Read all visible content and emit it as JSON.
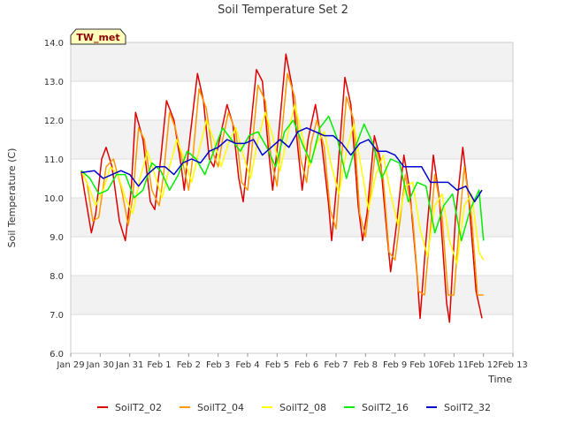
{
  "chart_data": {
    "type": "line",
    "title": "Soil Temperature Set 2",
    "xlabel": "Time",
    "ylabel": "Soil Temperature (C)",
    "badge": "TW_met",
    "ylim": [
      6.0,
      14.0
    ],
    "yticks": [
      "6.0",
      "7.0",
      "8.0",
      "9.0",
      "10.0",
      "11.0",
      "12.0",
      "13.0",
      "14.0"
    ],
    "xlim": [
      0,
      15
    ],
    "xticks": [
      "Jan 29",
      "Jan 30",
      "Jan 31",
      "Feb 1",
      "Feb 2",
      "Feb 3",
      "Feb 4",
      "Feb 5",
      "Feb 6",
      "Feb 7",
      "Feb 8",
      "Feb 9",
      "Feb 10",
      "Feb 11",
      "Feb 12",
      "Feb 13"
    ],
    "grid": true,
    "legend_position": "bottom",
    "series": [
      {
        "name": "SoilT2_02",
        "color": "#dd0000",
        "x": [
          0.35,
          0.5,
          0.7,
          0.85,
          1.05,
          1.2,
          1.4,
          1.65,
          1.85,
          2.05,
          2.2,
          2.45,
          2.7,
          2.85,
          3.05,
          3.25,
          3.5,
          3.75,
          3.85,
          4.05,
          4.3,
          4.5,
          4.7,
          4.85,
          5.05,
          5.3,
          5.5,
          5.7,
          5.85,
          6.05,
          6.3,
          6.5,
          6.7,
          6.85,
          7.05,
          7.3,
          7.5,
          7.7,
          7.85,
          8.05,
          8.3,
          8.5,
          8.75,
          8.85,
          9.05,
          9.3,
          9.5,
          9.75,
          9.9,
          10.05,
          10.3,
          10.5,
          10.75,
          10.85,
          11.05,
          11.3,
          11.5,
          11.75,
          11.85,
          12.05,
          12.3,
          12.5,
          12.75,
          12.85,
          13.05,
          13.3,
          13.5,
          13.75,
          13.95
        ],
        "y": [
          10.7,
          10.0,
          9.1,
          9.6,
          11.0,
          11.3,
          10.8,
          9.4,
          8.9,
          10.2,
          12.2,
          11.5,
          9.9,
          9.7,
          11.0,
          12.5,
          12.0,
          10.8,
          10.2,
          11.6,
          13.2,
          12.5,
          11.0,
          10.8,
          11.5,
          12.4,
          11.9,
          10.5,
          9.9,
          11.4,
          13.3,
          13.0,
          11.3,
          10.2,
          11.6,
          13.7,
          12.9,
          11.3,
          10.2,
          11.5,
          12.4,
          11.5,
          9.8,
          8.9,
          10.6,
          13.1,
          12.4,
          9.8,
          8.9,
          9.6,
          11.6,
          11.0,
          8.9,
          8.1,
          9.3,
          11.1,
          10.2,
          8.0,
          6.9,
          8.9,
          11.1,
          10.0,
          7.3,
          6.8,
          9.5,
          11.3,
          10.0,
          7.6,
          6.9
        ]
      },
      {
        "name": "SoilT2_04",
        "color": "#ff9900",
        "x": [
          0.35,
          0.55,
          0.75,
          0.95,
          1.2,
          1.45,
          1.7,
          1.95,
          2.1,
          2.3,
          2.5,
          2.75,
          3.0,
          3.15,
          3.35,
          3.55,
          3.8,
          4.0,
          4.15,
          4.35,
          4.6,
          4.8,
          5.0,
          5.15,
          5.35,
          5.6,
          5.8,
          6.0,
          6.15,
          6.35,
          6.6,
          6.8,
          7.0,
          7.15,
          7.35,
          7.6,
          7.8,
          8.0,
          8.15,
          8.35,
          8.6,
          8.8,
          9.0,
          9.15,
          9.35,
          9.6,
          9.8,
          10.0,
          10.15,
          10.35,
          10.6,
          10.8,
          11.0,
          11.2,
          11.35,
          11.6,
          11.8,
          12.0,
          12.2,
          12.35,
          12.6,
          12.8,
          13.0,
          13.2,
          13.35,
          13.6,
          13.8,
          14.0
        ],
        "y": [
          10.7,
          10.4,
          9.4,
          9.5,
          10.8,
          11.0,
          10.3,
          9.3,
          10.0,
          11.8,
          11.5,
          10.2,
          9.8,
          10.6,
          12.2,
          11.8,
          10.9,
          10.2,
          11.1,
          12.8,
          12.3,
          11.2,
          10.8,
          11.5,
          12.2,
          11.7,
          10.4,
          10.2,
          11.3,
          12.9,
          12.5,
          11.0,
          10.3,
          11.6,
          13.2,
          12.6,
          11.0,
          10.4,
          11.4,
          12.0,
          11.3,
          9.7,
          9.2,
          10.7,
          12.6,
          12.0,
          9.6,
          9.0,
          10.0,
          11.3,
          10.5,
          8.6,
          8.4,
          9.6,
          10.6,
          9.5,
          7.6,
          7.5,
          9.2,
          10.6,
          9.5,
          7.5,
          7.5,
          9.5,
          10.8,
          9.5,
          7.5,
          7.5
        ]
      },
      {
        "name": "SoilT2_08",
        "color": "#ffff00",
        "x": [
          0.35,
          0.6,
          0.85,
          1.1,
          1.35,
          1.6,
          1.85,
          2.1,
          2.35,
          2.6,
          2.85,
          3.1,
          3.35,
          3.6,
          3.85,
          4.1,
          4.35,
          4.6,
          4.85,
          5.1,
          5.35,
          5.6,
          5.85,
          6.1,
          6.35,
          6.6,
          6.85,
          7.1,
          7.35,
          7.6,
          7.85,
          8.1,
          8.35,
          8.6,
          8.85,
          9.1,
          9.35,
          9.6,
          9.85,
          10.1,
          10.35,
          10.6,
          10.85,
          11.1,
          11.35,
          11.6,
          11.85,
          12.1,
          12.35,
          12.6,
          12.85,
          13.1,
          13.35,
          13.6,
          13.85,
          14.0
        ],
        "y": [
          10.7,
          10.3,
          9.8,
          10.2,
          10.8,
          10.6,
          10.0,
          9.6,
          10.5,
          11.2,
          10.6,
          10.0,
          10.8,
          11.5,
          11.0,
          10.4,
          11.2,
          12.0,
          11.5,
          10.8,
          11.4,
          11.8,
          11.1,
          10.5,
          11.5,
          12.2,
          11.6,
          10.7,
          11.6,
          12.4,
          11.6,
          10.8,
          11.4,
          11.7,
          10.8,
          10.1,
          11.2,
          11.9,
          10.8,
          9.7,
          10.6,
          11.1,
          10.1,
          9.3,
          10.3,
          10.4,
          9.2,
          8.5,
          9.8,
          10.1,
          8.9,
          8.3,
          9.8,
          10.1,
          8.6,
          8.4
        ]
      },
      {
        "name": "SoilT2_16",
        "color": "#00ee00",
        "x": [
          0.35,
          0.65,
          0.95,
          1.25,
          1.55,
          1.85,
          2.15,
          2.45,
          2.75,
          3.05,
          3.35,
          3.65,
          3.95,
          4.25,
          4.55,
          4.85,
          5.15,
          5.45,
          5.75,
          6.05,
          6.35,
          6.65,
          6.95,
          7.25,
          7.55,
          7.85,
          8.15,
          8.45,
          8.75,
          9.05,
          9.35,
          9.65,
          9.95,
          10.25,
          10.55,
          10.85,
          11.15,
          11.45,
          11.75,
          12.05,
          12.35,
          12.65,
          12.95,
          13.25,
          13.55,
          13.85,
          14.0
        ],
        "y": [
          10.7,
          10.5,
          10.1,
          10.2,
          10.6,
          10.6,
          10.0,
          10.2,
          10.9,
          10.7,
          10.2,
          10.6,
          11.2,
          11.0,
          10.6,
          11.2,
          11.8,
          11.5,
          11.2,
          11.6,
          11.7,
          11.3,
          10.8,
          11.7,
          12.0,
          11.4,
          10.9,
          11.8,
          12.1,
          11.5,
          10.5,
          11.3,
          11.9,
          11.4,
          10.5,
          11.0,
          10.9,
          9.9,
          10.4,
          10.3,
          9.1,
          9.8,
          10.1,
          8.9,
          9.7,
          10.2,
          8.9
        ]
      },
      {
        "name": "SoilT2_32",
        "color": "#0000cc",
        "x": [
          0.35,
          0.8,
          1.1,
          1.4,
          1.7,
          2.0,
          2.3,
          2.6,
          2.9,
          3.2,
          3.5,
          3.8,
          4.1,
          4.4,
          4.7,
          5.0,
          5.3,
          5.6,
          5.9,
          6.2,
          6.5,
          6.8,
          7.1,
          7.4,
          7.7,
          8.0,
          8.3,
          8.6,
          8.9,
          9.2,
          9.5,
          9.8,
          10.1,
          10.4,
          10.7,
          11.0,
          11.3,
          11.6,
          11.9,
          12.2,
          12.5,
          12.8,
          13.1,
          13.4,
          13.7,
          13.95
        ],
        "y": [
          10.65,
          10.7,
          10.5,
          10.6,
          10.7,
          10.6,
          10.3,
          10.6,
          10.8,
          10.8,
          10.6,
          10.9,
          11.0,
          10.9,
          11.2,
          11.3,
          11.5,
          11.4,
          11.4,
          11.5,
          11.1,
          11.3,
          11.5,
          11.3,
          11.7,
          11.8,
          11.7,
          11.6,
          11.6,
          11.4,
          11.1,
          11.4,
          11.5,
          11.2,
          11.2,
          11.1,
          10.8,
          10.8,
          10.8,
          10.4,
          10.4,
          10.4,
          10.2,
          10.3,
          9.9,
          10.2
        ]
      }
    ]
  }
}
